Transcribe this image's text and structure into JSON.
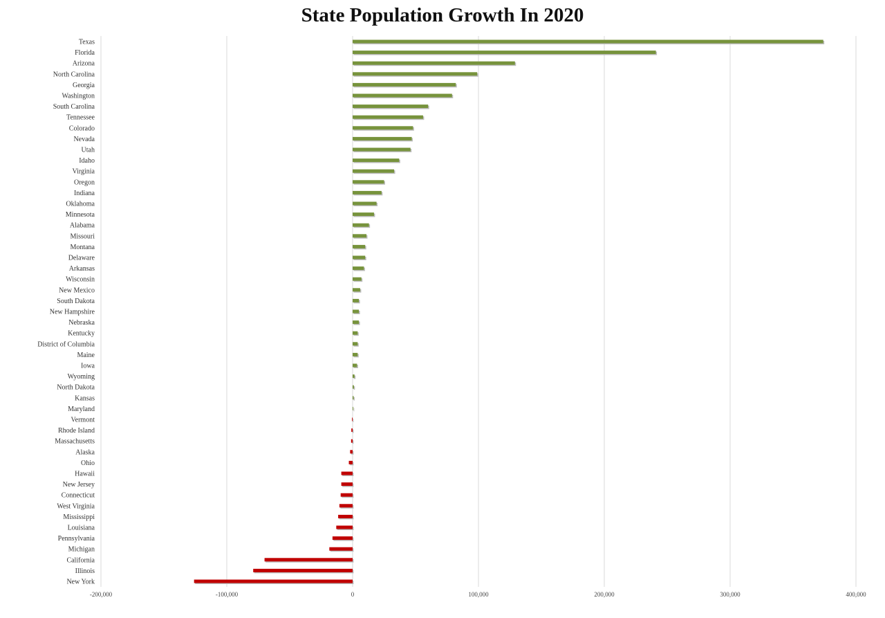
{
  "chart_data": {
    "type": "bar",
    "orientation": "horizontal",
    "title": "State Population Growth In 2020",
    "xlabel": "",
    "ylabel": "",
    "xlim": [
      -200000,
      400000
    ],
    "ticks": [
      -200000,
      -100000,
      0,
      100000,
      200000,
      300000,
      400000
    ],
    "tick_labels": [
      "-200,000",
      "-100,000",
      "0",
      "100,000",
      "200,000",
      "300,000",
      "400,000"
    ],
    "grid": "vertical",
    "legend": "none",
    "colors": {
      "positive": "#77933c",
      "negative": "#c00000"
    },
    "categories": [
      "Texas",
      "Florida",
      "Arizona",
      "North Carolina",
      "Georgia",
      "Washington",
      "South Carolina",
      "Tennessee",
      "Colorado",
      "Nevada",
      "Utah",
      "Idaho",
      "Virginia",
      "Oregon",
      "Indiana",
      "Oklahoma",
      "Minnesota",
      "Alabama",
      "Missouri",
      "Montana",
      "Delaware",
      "Arkansas",
      "Wisconsin",
      "New Mexico",
      "South Dakota",
      "New Hampshire",
      "Nebraska",
      "Kentucky",
      "District of Columbia",
      "Maine",
      "Iowa",
      "Wyoming",
      "North Dakota",
      "Kansas",
      "Maryland",
      "Vermont",
      "Rhode Island",
      "Massachusetts",
      "Alaska",
      "Ohio",
      "Hawaii",
      "New Jersey",
      "Connecticut",
      "West Virginia",
      "Mississippi",
      "Louisiana",
      "Pennsylvania",
      "Michigan",
      "California",
      "Illinois",
      "New York"
    ],
    "values": [
      374000,
      241000,
      129000,
      99000,
      82000,
      79000,
      60000,
      56000,
      48000,
      47000,
      46000,
      37000,
      33000,
      25000,
      23000,
      19000,
      17000,
      13000,
      11000,
      10000,
      10000,
      9000,
      7000,
      6000,
      5000,
      5000,
      5000,
      4000,
      4000,
      4000,
      3500,
      1500,
      1000,
      800,
      500,
      -500,
      -1000,
      -1200,
      -2000,
      -3000,
      -9000,
      -9000,
      -9500,
      -10500,
      -11500,
      -13000,
      -16000,
      -18500,
      -70000,
      -79000,
      -126000
    ]
  }
}
